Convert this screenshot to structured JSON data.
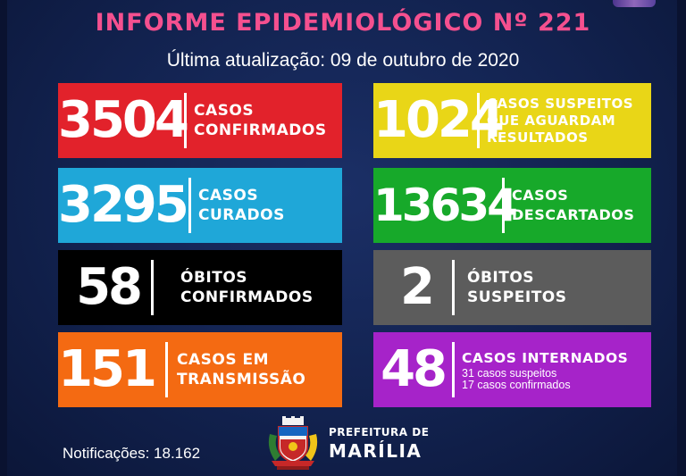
{
  "header": {
    "title": "INFORME EPIDEMIOLÓGICO Nº 221",
    "subtitle": "Última atualização: 09 de outubro de 2020"
  },
  "cards": [
    {
      "value": "3504",
      "lines": [
        "CASOS",
        "CONFIRMADOS"
      ],
      "color": "#e2222b"
    },
    {
      "value": "1024",
      "lines": [
        "CASOS SUSPEITOS",
        "QUE AGUARDAM",
        "RESULTADOS"
      ],
      "color": "#e9d617"
    },
    {
      "value": "3295",
      "lines": [
        "CASOS",
        "CURADOS"
      ],
      "color": "#1fa7d8"
    },
    {
      "value": "13634",
      "lines": [
        "CASOS",
        "DESCARTADOS"
      ],
      "color": "#17a92a"
    },
    {
      "value": "58",
      "lines": [
        "ÓBITOS",
        "CONFIRMADOS"
      ],
      "color": "#000000"
    },
    {
      "value": "2",
      "lines": [
        "ÓBITOS",
        "SUSPEITOS"
      ],
      "color": "#5c5c5c"
    },
    {
      "value": "151",
      "lines": [
        "CASOS EM",
        "TRANSMISSÃO"
      ],
      "color": "#f46a12"
    },
    {
      "value": "48",
      "lines": [
        "CASOS INTERNADOS"
      ],
      "sublines": [
        "31 casos suspeitos",
        "17 casos confirmados"
      ],
      "color": "#a623c9"
    }
  ],
  "footer": {
    "notifications": "Notificações: 18.162",
    "logo_line1": "PREFEITURA DE",
    "logo_line2": "MARÍLIA"
  },
  "icons": [
    "coat-of-arms-icon"
  ]
}
